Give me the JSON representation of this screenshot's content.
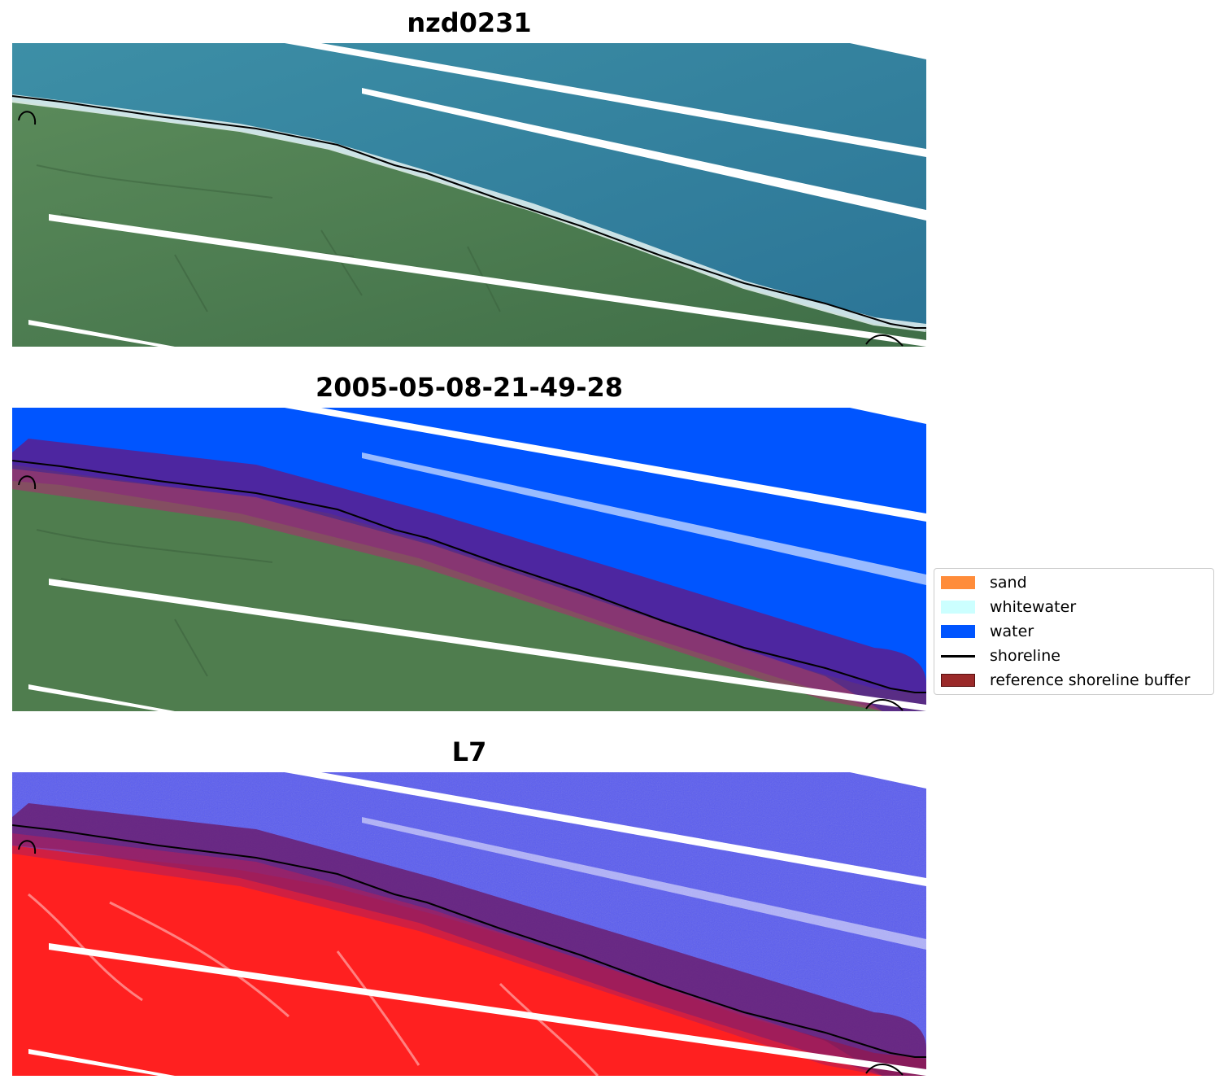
{
  "panels": [
    {
      "title": "nzd0231",
      "kind": "rgb"
    },
    {
      "title": "2005-05-08-21-49-28",
      "kind": "classified"
    },
    {
      "title": "L7",
      "kind": "index"
    }
  ],
  "legend": {
    "items": [
      {
        "label": "sand",
        "color": "#ff8c3a",
        "type": "patch"
      },
      {
        "label": "whitewater",
        "color": "#ccffff",
        "type": "patch"
      },
      {
        "label": "water",
        "color": "#0055ff",
        "type": "patch"
      },
      {
        "label": "shoreline",
        "color": "#000000",
        "type": "line"
      },
      {
        "label": "reference shoreline buffer",
        "color": "#9b2a2a",
        "type": "patch"
      }
    ]
  },
  "colors": {
    "ocean": "#2f7f9c",
    "land": "#4f7d4e",
    "water_class": "#0055ff",
    "buffer": "#5a1f8f",
    "index_water": "#5a5cf0",
    "index_land": "#ff2020"
  }
}
